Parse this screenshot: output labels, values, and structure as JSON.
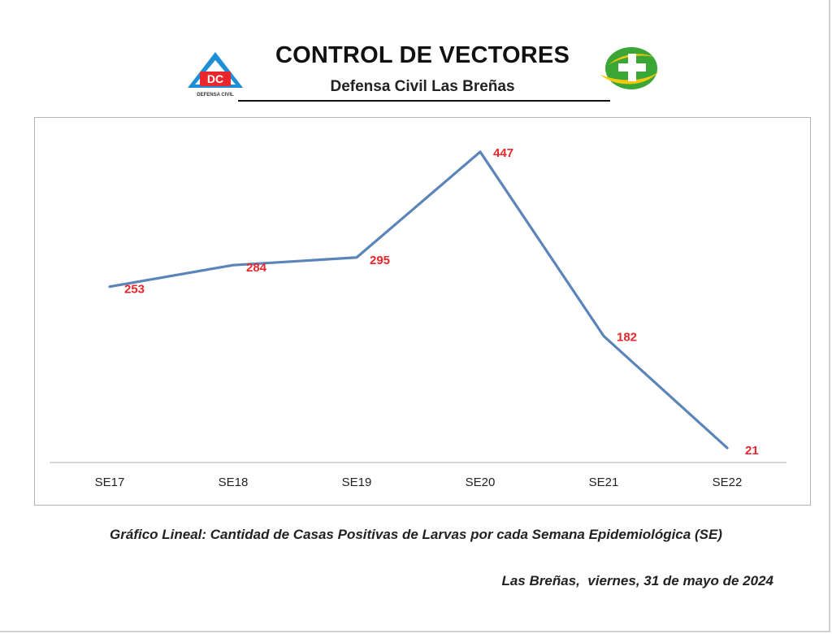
{
  "header": {
    "title": "CONTROL DE VECTORES",
    "subtitle": "Defensa Civil Las Breñas",
    "logo_left": {
      "icon": "defensa-civil-logo",
      "text": "DC",
      "subtext": "DEFENSA CIVIL"
    },
    "logo_right": {
      "icon": "health-cross-logo"
    }
  },
  "chart_data": {
    "type": "line",
    "title": "",
    "xlabel": "",
    "ylabel": "",
    "categories": [
      "SE17",
      "SE18",
      "SE19",
      "SE20",
      "SE21",
      "SE22"
    ],
    "series": [
      {
        "values": [
          253,
          284,
          295,
          447,
          182,
          21
        ],
        "color": "#5b84b8"
      }
    ],
    "data_label_color": "#e8262b",
    "ylim": [
      0,
      500
    ],
    "grid": false,
    "legend": "none"
  },
  "caption": "Gráfico Lineal: Cantidad de Casas Positivas de Larvas por cada Semana Epidemiológica (SE)",
  "dateline": "Las Breñas,  viernes, 31 de mayo de 2024"
}
